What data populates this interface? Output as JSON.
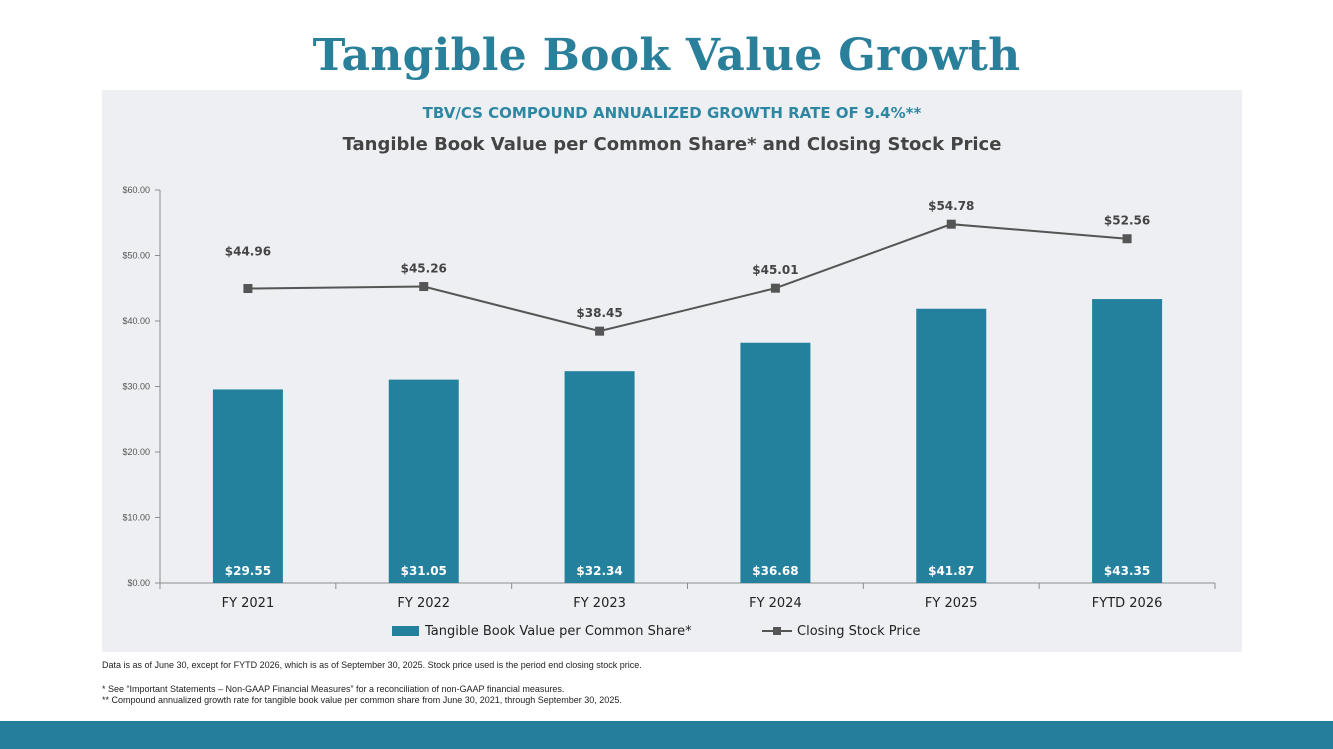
{
  "page": {
    "title": "Tangible Book Value Growth"
  },
  "chart_data": {
    "type": "bar",
    "subtitle": "TBV/CS COMPOUND ANNUALIZED GROWTH RATE OF 9.4%**",
    "title": "Tangible Book Value per Common Share* and Closing Stock Price",
    "categories": [
      "FY 2021",
      "FY 2022",
      "FY 2023",
      "FY 2024",
      "FY 2025",
      "FYTD 2026"
    ],
    "y_ticks": [
      "$0.00",
      "$10.00",
      "$20.00",
      "$30.00",
      "$40.00",
      "$50.00",
      "$60.00"
    ],
    "ylim": [
      0,
      60
    ],
    "grid": false,
    "legend_position": "bottom",
    "series": [
      {
        "name": "Tangible Book Value per Common Share*",
        "type": "bar",
        "color": "#23819e",
        "values": [
          29.55,
          31.05,
          32.34,
          36.68,
          41.87,
          43.35
        ],
        "labels": [
          "$29.55",
          "$31.05",
          "$32.34",
          "$36.68",
          "$41.87",
          "$43.35"
        ]
      },
      {
        "name": "Closing Stock Price",
        "type": "line",
        "color": "#555555",
        "values": [
          44.96,
          45.26,
          38.45,
          45.01,
          54.78,
          52.56
        ],
        "labels": [
          "$44.96",
          "$45.26",
          "$38.45",
          "$45.01",
          "$54.78",
          "$52.56"
        ]
      }
    ]
  },
  "footnotes": {
    "main": "Data is as of June 30, except for FYTD 2026, which is as of September 30, 2025. Stock price used is the period end closing stock price.",
    "star": "*   See “Important Statements – Non-GAAP Financial Measures” for a reconciliation of non-GAAP financial measures.",
    "double_star": "** Compound annualized growth rate for tangible book value per common share from June 30, 2021, through September 30, 2025."
  }
}
